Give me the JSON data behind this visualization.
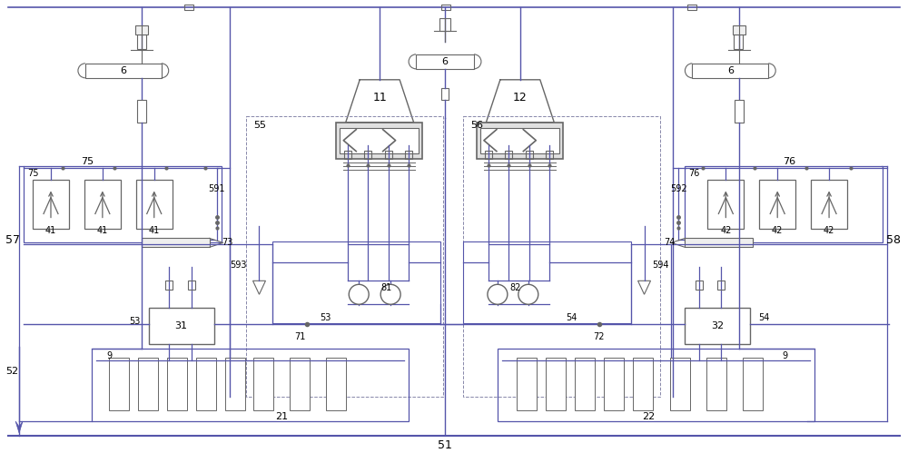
{
  "bg_color": "#ffffff",
  "lc": "#5555aa",
  "gc": "#666666",
  "mc": "#9999bb",
  "pc": "#aa88aa",
  "green_c": "#88aa88"
}
